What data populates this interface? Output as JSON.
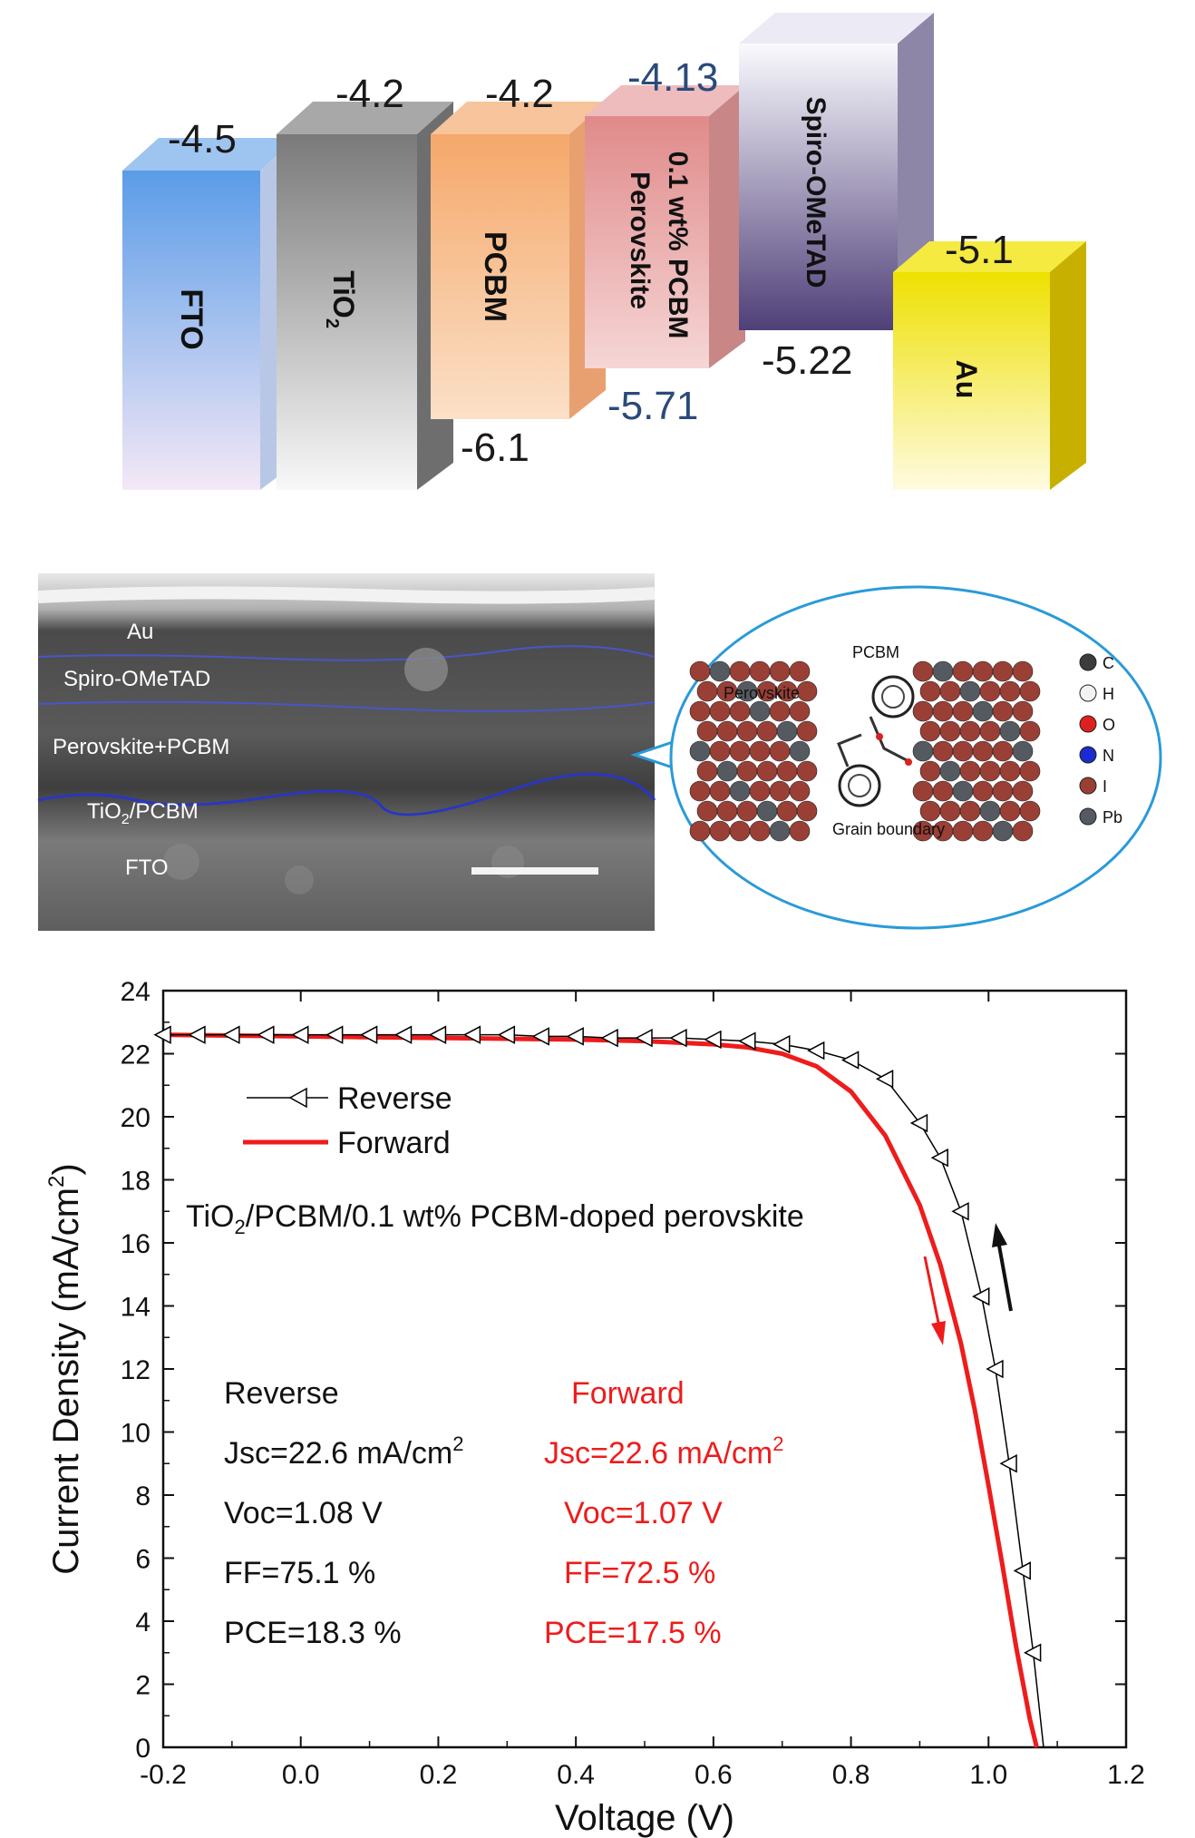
{
  "energy_diagram": {
    "layers": [
      {
        "name": "FTO",
        "top": "-4.5",
        "bottom": "",
        "color": "#6aa8e8"
      },
      {
        "name": "TiO",
        "sub": "2",
        "top": "-4.2",
        "bottom": "",
        "color": "#8c8c8c"
      },
      {
        "name": "PCBM",
        "top": "-4.2",
        "bottom": "-6.1",
        "color": "#f4b07e"
      },
      {
        "name_line1": "0.1 wt%  PCBM",
        "name_line2": "Perovskite",
        "top": "-4.13",
        "bottom": "-5.71",
        "color": "#e89a9a"
      },
      {
        "name": "Spiro-OMeTAD",
        "top": "",
        "bottom": "-5.22",
        "color": "#6a5a8c"
      },
      {
        "name": "Au",
        "top": "-5.1",
        "bottom": "",
        "color": "#f2e000"
      }
    ]
  },
  "sem_image": {
    "layer_labels": [
      "Au",
      "Spiro-OMeTAD",
      "Perovskite+PCBM",
      "TiO",
      "/PCBM",
      "FTO"
    ],
    "tio2_sub": "2",
    "inset": {
      "perovskite_label": "Perovskite",
      "pcbm_label": "PCBM",
      "grain_boundary_label": "Grain boundary",
      "legend": [
        {
          "label": "C",
          "color": "#3c3c3c"
        },
        {
          "label": "H",
          "color": "#f2f2f2"
        },
        {
          "label": "O",
          "color": "#e02020"
        },
        {
          "label": "N",
          "color": "#1a2ccf"
        },
        {
          "label": "I",
          "color": "#9a3f35"
        },
        {
          "label": "Pb",
          "color": "#555a60"
        }
      ]
    }
  },
  "chart_data": {
    "type": "line",
    "xlabel": "Voltage (V)",
    "ylabel": "Current Density (mA/cm",
    "ylabel_sup": "2",
    "ylabel_end": ")",
    "xlim": [
      -0.2,
      1.2
    ],
    "ylim": [
      0,
      24
    ],
    "x_ticks": [
      "-0.2",
      "0.0",
      "0.2",
      "0.4",
      "0.6",
      "0.8",
      "1.0",
      "1.2"
    ],
    "y_ticks": [
      "0",
      "2",
      "4",
      "6",
      "8",
      "10",
      "12",
      "14",
      "16",
      "18",
      "20",
      "22",
      "24"
    ],
    "grid": false,
    "legend_position": "upper-left",
    "series": [
      {
        "name": "Reverse",
        "color": "#000000",
        "marker": "open-left-triangle",
        "x": [
          -0.2,
          -0.15,
          -0.1,
          -0.05,
          0.0,
          0.05,
          0.1,
          0.15,
          0.2,
          0.25,
          0.3,
          0.35,
          0.4,
          0.45,
          0.5,
          0.55,
          0.6,
          0.65,
          0.7,
          0.75,
          0.8,
          0.85,
          0.9,
          0.93,
          0.96,
          0.99,
          1.01,
          1.03,
          1.05,
          1.065,
          1.08
        ],
        "y": [
          22.6,
          22.6,
          22.6,
          22.6,
          22.6,
          22.6,
          22.6,
          22.6,
          22.6,
          22.6,
          22.6,
          22.55,
          22.55,
          22.5,
          22.5,
          22.5,
          22.45,
          22.4,
          22.3,
          22.1,
          21.8,
          21.2,
          19.8,
          18.7,
          17.0,
          14.3,
          12.0,
          9.0,
          5.6,
          3.0,
          0.0
        ]
      },
      {
        "name": "Forward",
        "color": "#ee1c1c",
        "x": [
          -0.2,
          0.0,
          0.2,
          0.4,
          0.5,
          0.6,
          0.65,
          0.7,
          0.75,
          0.8,
          0.85,
          0.9,
          0.93,
          0.96,
          0.98,
          1.0,
          1.02,
          1.04,
          1.06,
          1.07
        ],
        "y": [
          22.6,
          22.55,
          22.5,
          22.45,
          22.4,
          22.3,
          22.2,
          22.0,
          21.6,
          20.8,
          19.4,
          17.2,
          15.3,
          12.8,
          10.7,
          8.3,
          5.8,
          3.2,
          0.9,
          0.0
        ]
      }
    ],
    "legend_entries": [
      "Reverse",
      "Forward"
    ],
    "device_label_prefix": "TiO",
    "device_label_sub": "2",
    "device_label_rest": "/PCBM/0.1 wt% PCBM-doped perovskite",
    "stats": {
      "reverse": {
        "header": "Reverse",
        "jsc": "Jsc=22.6 mA/cm",
        "jsc_sup": "2",
        "voc": "Voc=1.08 V",
        "ff": "FF=75.1 %",
        "pce": "PCE=18.3 %"
      },
      "forward": {
        "header": "Forward",
        "jsc": "Jsc=22.6 mA/cm",
        "jsc_sup": "2",
        "voc": "Voc=1.07 V",
        "ff": "FF=72.5 %",
        "pce": "PCE=17.5 %"
      }
    }
  }
}
